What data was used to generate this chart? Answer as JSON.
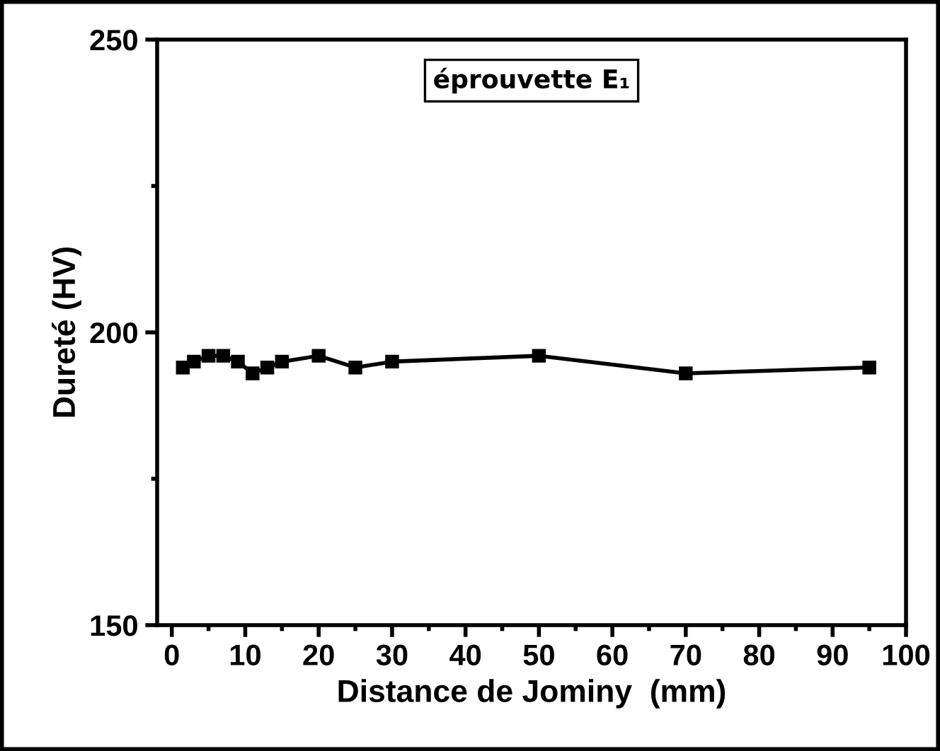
{
  "chart_data": {
    "type": "line",
    "title": "éprouvette E₁",
    "xlabel": "Distance de Jominy  (mm)",
    "ylabel": "Dureté (HV)",
    "series": [
      {
        "color": "#000000",
        "x": [
          1.5,
          3,
          5,
          7,
          9,
          11,
          13,
          15,
          20,
          25,
          30,
          50,
          70,
          95
        ],
        "values": [
          194,
          195,
          196,
          196,
          195,
          193,
          194,
          195,
          196,
          194,
          195,
          196,
          193,
          194
        ]
      }
    ],
    "xlim": [
      -2,
      100
    ],
    "xticks": [
      0,
      10,
      20,
      30,
      40,
      50,
      60,
      70,
      80,
      90,
      100
    ],
    "ylim": [
      150,
      250
    ],
    "yticks": [
      150,
      200,
      250
    ],
    "marker": "square",
    "line_style": "solid",
    "grid": false,
    "legend": false
  }
}
